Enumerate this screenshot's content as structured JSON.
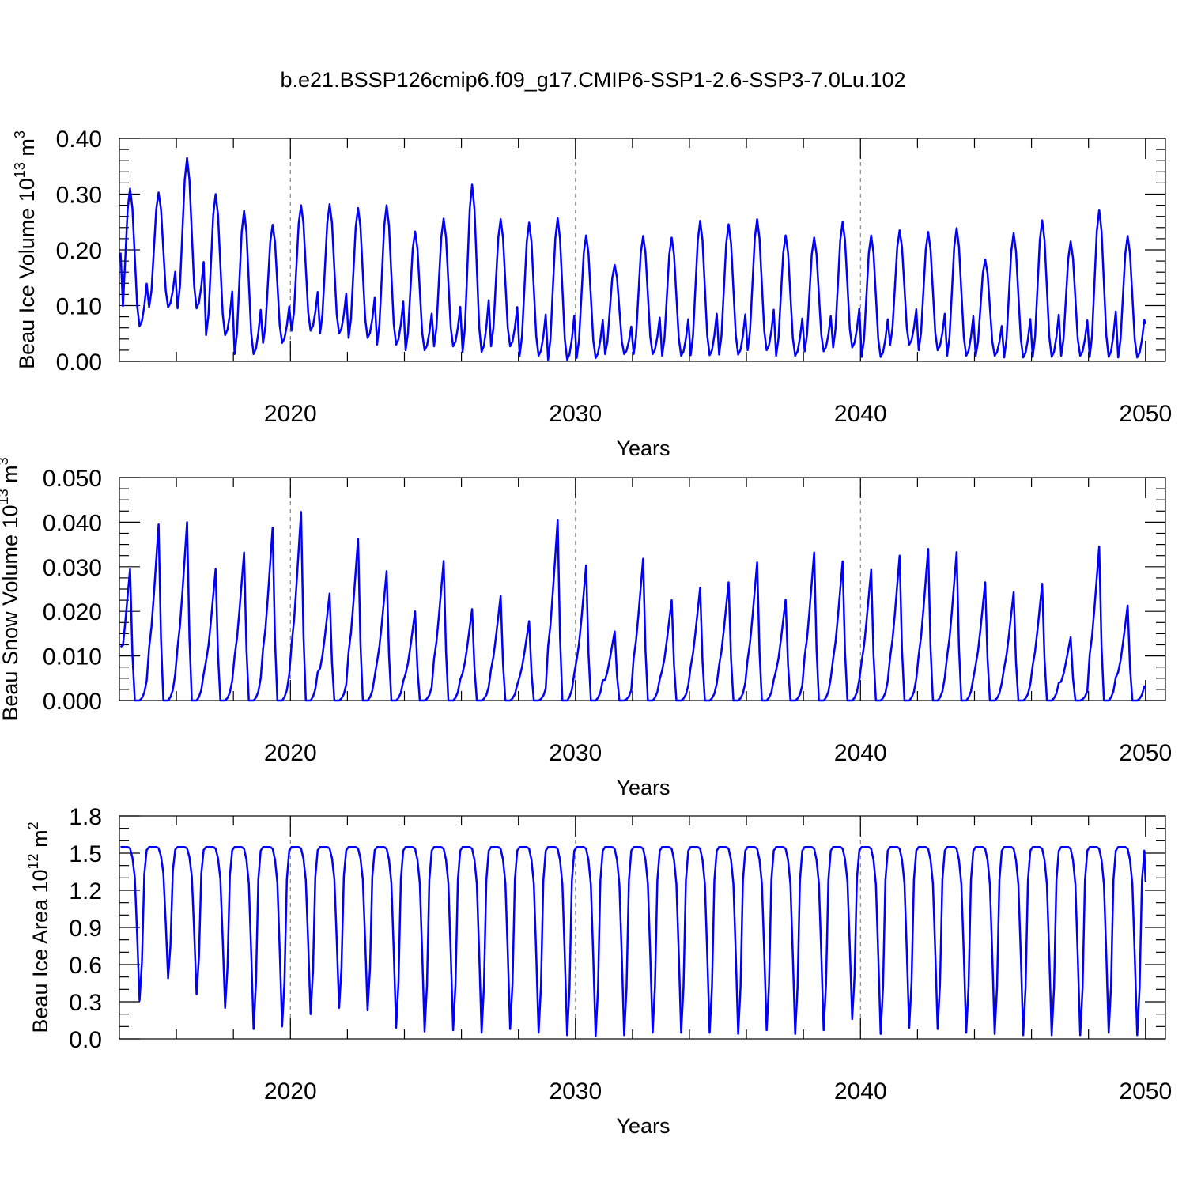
{
  "title": "b.e21.BSSP126cmip6.f09_g17.CMIP6-SSP1-2.6-SSP3-7.0Lu.102",
  "chart_data": [
    {
      "type": "line",
      "id": "ice-volume",
      "title": "",
      "xlabel": "Years",
      "ylabel": "Beau Ice Volume 10",
      "ylabel_sup": "13",
      "ylabel_unit": " m",
      "ylabel_unit_sup": "3",
      "xlim": [
        2014.0,
        2050.7
      ],
      "ylim": [
        0.0,
        0.4
      ],
      "x_major_ticks": [
        2020,
        2030,
        2040,
        2050
      ],
      "x_tick_labels": [
        "2020",
        "2030",
        "2040",
        "2050"
      ],
      "y_major_ticks": [
        0.0,
        0.1,
        0.2,
        0.3,
        0.4
      ],
      "y_tick_labels": [
        "0.00",
        "0.10",
        "0.20",
        "0.30",
        "0.40"
      ],
      "y_minor_step": 0.02,
      "grid": "dashed vertical lines at 2020, 2030, 2040",
      "series": [
        {
          "name": "Beau Ice Volume",
          "color": "#0000ff",
          "peaks": [
            0.31,
            0.303,
            0.365,
            0.3,
            0.27,
            0.245,
            0.28,
            0.282,
            0.275,
            0.28,
            0.233,
            0.256,
            0.317,
            0.255,
            0.249,
            0.257,
            0.226,
            0.173,
            0.225,
            0.222,
            0.252,
            0.246,
            0.255,
            0.226,
            0.222,
            0.25,
            0.226,
            0.235,
            0.232,
            0.239,
            0.183,
            0.23,
            0.253,
            0.215,
            0.272,
            0.225
          ],
          "troughs": [
            0.063,
            0.097,
            0.095,
            0.047,
            0.013,
            0.033,
            0.055,
            0.05,
            0.042,
            0.03,
            0.02,
            0.027,
            0.017,
            0.027,
            0.01,
            0.003,
            0.006,
            0.013,
            0.013,
            0.01,
            0.011,
            0.012,
            0.02,
            0.01,
            0.018,
            0.025,
            0.008,
            0.03,
            0.02,
            0.01,
            0.01,
            0.007,
            0.008,
            0.01,
            0.008,
            0.007
          ],
          "start_value": 0.195,
          "end_value": 0.067
        }
      ]
    },
    {
      "type": "line",
      "id": "snow-volume",
      "title": "",
      "xlabel": "Years",
      "ylabel": "Beau Snow Volume 10",
      "ylabel_sup": "13",
      "ylabel_unit": " m",
      "ylabel_unit_sup": "3",
      "xlim": [
        2014.0,
        2050.7
      ],
      "ylim": [
        0.0,
        0.05
      ],
      "x_major_ticks": [
        2020,
        2030,
        2040,
        2050
      ],
      "x_tick_labels": [
        "2020",
        "2030",
        "2040",
        "2050"
      ],
      "y_major_ticks": [
        0.0,
        0.01,
        0.02,
        0.03,
        0.04,
        0.05
      ],
      "y_tick_labels": [
        "0.000",
        "0.010",
        "0.020",
        "0.030",
        "0.040",
        "0.050"
      ],
      "y_minor_step": 0.0025,
      "grid": "dashed vertical lines at 2020, 2030, 2040",
      "series": [
        {
          "name": "Beau Snow Volume",
          "color": "#0000ff",
          "peaks": [
            0.0295,
            0.0395,
            0.04,
            0.0295,
            0.0332,
            0.0388,
            0.0423,
            0.024,
            0.0363,
            0.029,
            0.02,
            0.0313,
            0.0205,
            0.0235,
            0.0178,
            0.0405,
            0.0303,
            0.0155,
            0.0318,
            0.0225,
            0.0253,
            0.0265,
            0.031,
            0.0226,
            0.0332,
            0.0312,
            0.0293,
            0.0325,
            0.034,
            0.0333,
            0.0265,
            0.0243,
            0.0262,
            0.0142,
            0.0345,
            0.0213
          ],
          "start_value": 0.012,
          "end_value": 0.003
        }
      ]
    },
    {
      "type": "line",
      "id": "ice-area",
      "title": "",
      "xlabel": "Years",
      "ylabel": "Beau Ice Area 10",
      "ylabel_sup": "12",
      "ylabel_unit": " m",
      "ylabel_unit_sup": "2",
      "xlim": [
        2014.0,
        2050.7
      ],
      "ylim": [
        0.0,
        1.8
      ],
      "x_major_ticks": [
        2020,
        2030,
        2040,
        2050
      ],
      "x_tick_labels": [
        "2020",
        "2030",
        "2040",
        "2050"
      ],
      "y_major_ticks": [
        0.0,
        0.3,
        0.6,
        0.9,
        1.2,
        1.5,
        1.8
      ],
      "y_tick_labels": [
        "0.0",
        "0.3",
        "0.6",
        "0.9",
        "1.2",
        "1.5",
        "1.8"
      ],
      "y_minor_step": 0.1,
      "grid": "dashed vertical lines at 2020, 2030, 2040",
      "series": [
        {
          "name": "Beau Ice Area",
          "color": "#0000ff",
          "peaks": [
            1.55,
            1.55,
            1.55,
            1.55,
            1.55,
            1.55,
            1.55,
            1.55,
            1.55,
            1.55,
            1.55,
            1.55,
            1.55,
            1.55,
            1.55,
            1.55,
            1.55,
            1.55,
            1.55,
            1.55,
            1.55,
            1.55,
            1.55,
            1.55,
            1.55,
            1.55,
            1.55,
            1.55,
            1.55,
            1.55,
            1.55,
            1.55,
            1.55,
            1.55,
            1.55,
            1.55
          ],
          "troughs": [
            0.31,
            0.49,
            0.36,
            0.25,
            0.08,
            0.1,
            0.2,
            0.25,
            0.23,
            0.09,
            0.06,
            0.07,
            0.05,
            0.08,
            0.05,
            0.03,
            0.02,
            0.03,
            0.05,
            0.05,
            0.05,
            0.04,
            0.07,
            0.04,
            0.07,
            0.16,
            0.04,
            0.09,
            0.08,
            0.05,
            0.04,
            0.03,
            0.03,
            0.03,
            0.05,
            0.03
          ],
          "start_value": 1.55,
          "end_value": 1.27
        }
      ]
    }
  ]
}
